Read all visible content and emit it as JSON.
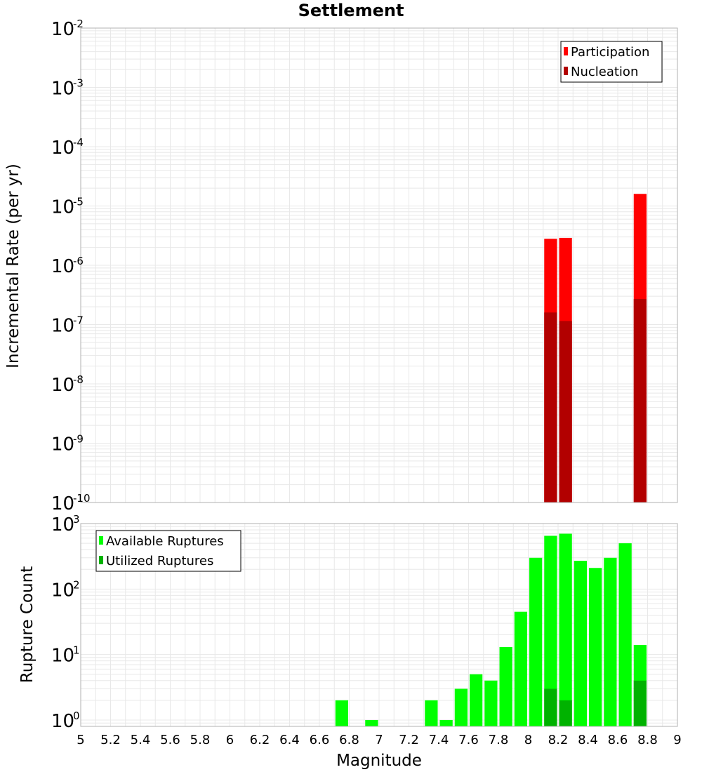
{
  "colors": {
    "participation": "#ff0000",
    "nucleation": "#b20000",
    "available": "#00ff00",
    "utilized": "#00b200",
    "grid": "#e8e8e8",
    "frame": "#b0b0b0"
  },
  "chart_data": [
    {
      "type": "bar",
      "title": "Settlement",
      "xlabel": "",
      "ylabel": "Incremental Rate (per yr)",
      "yscale": "log",
      "ylim": [
        1e-10,
        0.01
      ],
      "xlim": [
        5,
        9
      ],
      "grid": true,
      "legend_position": "top-right",
      "bin_width": 0.1,
      "x": [
        8.15,
        8.25,
        8.75
      ],
      "series": [
        {
          "name": "Participation",
          "values": [
            2.8e-06,
            2.9e-06,
            1.6e-05
          ]
        },
        {
          "name": "Nucleation",
          "values": [
            1.6e-07,
            1.15e-07,
            2.7e-07
          ]
        }
      ],
      "yticks": [
        {
          "base": "10",
          "exp": "-2"
        },
        {
          "base": "10",
          "exp": "-3"
        },
        {
          "base": "10",
          "exp": "-4"
        },
        {
          "base": "10",
          "exp": "-5"
        },
        {
          "base": "10",
          "exp": "-6"
        },
        {
          "base": "10",
          "exp": "-7"
        },
        {
          "base": "10",
          "exp": "-8"
        },
        {
          "base": "10",
          "exp": "-9"
        },
        {
          "base": "10",
          "exp": "-10"
        }
      ]
    },
    {
      "type": "bar",
      "title": "",
      "xlabel": "Magnitude",
      "ylabel": "Rupture Count",
      "yscale": "log",
      "ylim": [
        0.8,
        1000
      ],
      "xlim": [
        5,
        9
      ],
      "grid": true,
      "legend_position": "top-left",
      "bin_width": 0.1,
      "x": [
        6.75,
        6.95,
        7.35,
        7.45,
        7.55,
        7.65,
        7.75,
        7.85,
        7.95,
        8.05,
        8.15,
        8.25,
        8.35,
        8.45,
        8.55,
        8.65,
        8.75
      ],
      "series": [
        {
          "name": "Available Ruptures",
          "values": [
            2,
            1,
            2,
            1,
            3,
            5,
            4,
            13,
            45,
            300,
            650,
            700,
            270,
            210,
            300,
            500,
            14
          ]
        },
        {
          "name": "Utilized Ruptures",
          "values": [
            0,
            0,
            0,
            0,
            0,
            0,
            0,
            0,
            0,
            0,
            3,
            2,
            0,
            0,
            0,
            0,
            4
          ]
        }
      ],
      "xticks": [
        "5",
        "5.2",
        "5.4",
        "5.6",
        "5.8",
        "6",
        "6.2",
        "6.4",
        "6.6",
        "6.8",
        "7",
        "7.2",
        "7.4",
        "7.6",
        "7.8",
        "8",
        "8.2",
        "8.4",
        "8.6",
        "8.8",
        "9"
      ],
      "yticks": [
        {
          "base": "10",
          "exp": "3"
        },
        {
          "base": "10",
          "exp": "2"
        },
        {
          "base": "10",
          "exp": "1"
        },
        {
          "base": "10",
          "exp": "0"
        }
      ]
    }
  ]
}
